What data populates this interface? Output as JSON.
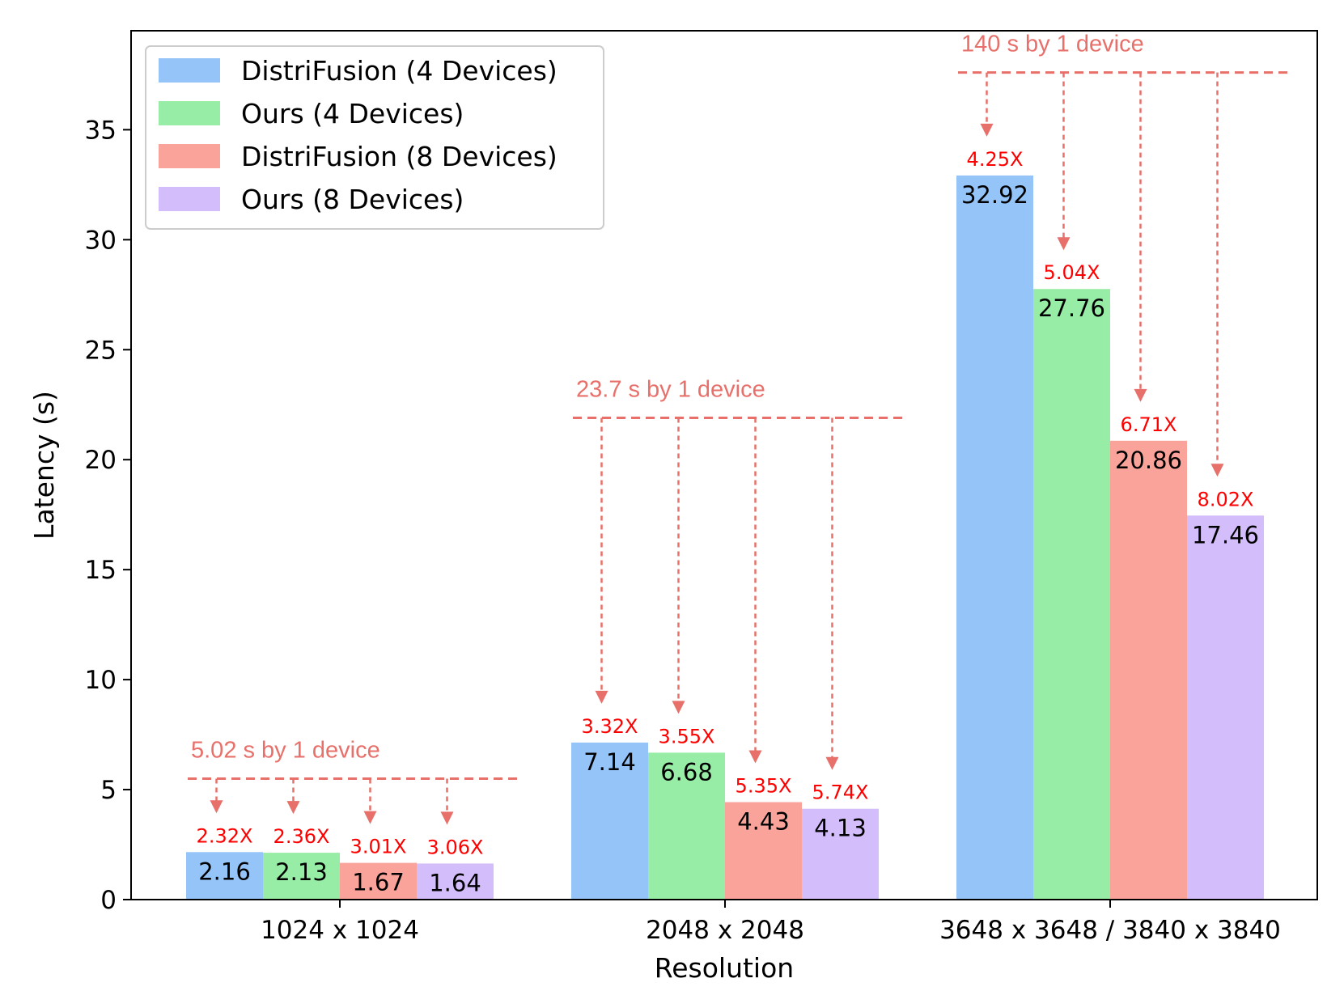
{
  "chart_data": {
    "type": "bar",
    "xlabel": "Resolution",
    "ylabel": "Latency (s)",
    "ylim": [
      0,
      39.5
    ],
    "yticks": [
      0,
      5,
      10,
      15,
      20,
      25,
      30,
      35
    ],
    "grid": false,
    "legend_position": "top-left",
    "categories": [
      "1024 x 1024",
      "2048 x 2048",
      "3648 x 3648 / 3840 x 3840"
    ],
    "series": [
      {
        "name": "DistriFusion (4 Devices)",
        "color": "#94c4f8",
        "values": [
          2.16,
          7.14,
          32.92
        ],
        "speedups": [
          "2.32X",
          "3.32X",
          "4.25X"
        ]
      },
      {
        "name": "Ours (4 Devices)",
        "color": "#98eda6",
        "values": [
          2.13,
          6.68,
          27.76
        ],
        "speedups": [
          "2.36X",
          "3.55X",
          "5.04X"
        ]
      },
      {
        "name": "DistriFusion (8 Devices)",
        "color": "#f9a39a",
        "values": [
          1.67,
          4.43,
          20.86
        ],
        "speedups": [
          "3.01X",
          "5.35X",
          "6.71X"
        ]
      },
      {
        "name": "Ours (8 Devices)",
        "color": "#d3bdfb",
        "values": [
          1.64,
          4.13,
          17.46
        ],
        "speedups": [
          "3.06X",
          "5.74X",
          "8.02X"
        ]
      }
    ],
    "value_label_texts": [
      [
        "2.16",
        "7.14",
        "32.92"
      ],
      [
        "2.13",
        "6.68",
        "27.76"
      ],
      [
        "1.67",
        "4.43",
        "20.86"
      ],
      [
        "1.64",
        "4.13",
        "17.46"
      ]
    ],
    "single_device_reference": [
      {
        "latency": 5.5,
        "label": "5.02 s by 1 device"
      },
      {
        "latency": 21.9,
        "label": "23.7 s by 1 device"
      },
      {
        "latency": 37.6,
        "label": "140 s by 1 device"
      }
    ],
    "annotation_color": "#e8706a",
    "speedup_color": "#ff0000"
  }
}
